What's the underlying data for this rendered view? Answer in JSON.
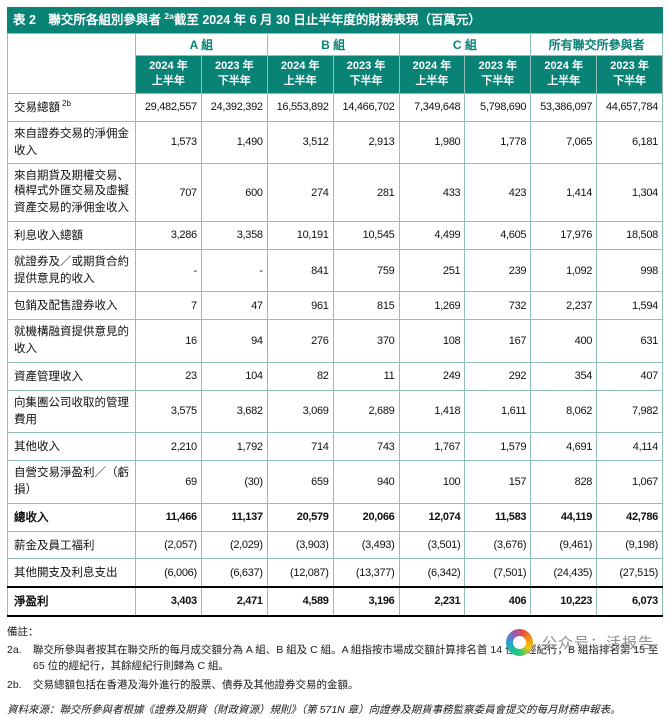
{
  "title": {
    "prefix": "表 2　聯交所各組別參與者 ",
    "sup": "2a",
    "suffix": "截至 2024 年 6 月 30 日止半年度的財務表現（百萬元）"
  },
  "header": {
    "groups": [
      "A 組",
      "B 組",
      "C 組",
      "所有聯交所參與者"
    ],
    "periods": [
      {
        "year": "2024 年",
        "half": "上半年"
      },
      {
        "year": "2023 年",
        "half": "下半年"
      },
      {
        "year": "2024 年",
        "half": "上半年"
      },
      {
        "year": "2023 年",
        "half": "下半年"
      },
      {
        "year": "2024 年",
        "half": "上半年"
      },
      {
        "year": "2023 年",
        "half": "下半年"
      },
      {
        "year": "2024 年",
        "half": "上半年"
      },
      {
        "year": "2023 年",
        "half": "下半年"
      }
    ]
  },
  "table": {
    "rows": [
      {
        "label": "交易總額",
        "sup": "2b",
        "style": "",
        "values": [
          "29,482,557",
          "24,392,392",
          "16,553,892",
          "14,466,702",
          "7,349,648",
          "5,798,690",
          "53,386,097",
          "44,657,784"
        ]
      },
      {
        "label": "來自證券交易的淨佣金收入",
        "style": "",
        "values": [
          "1,573",
          "1,490",
          "3,512",
          "2,913",
          "1,980",
          "1,778",
          "7,065",
          "6,181"
        ]
      },
      {
        "label": "來自期貨及期權交易、槓桿式外匯交易及虛擬資產交易的淨佣金收入",
        "style": "",
        "values": [
          "707",
          "600",
          "274",
          "281",
          "433",
          "423",
          "1,414",
          "1,304"
        ]
      },
      {
        "label": "利息收入總額",
        "style": "",
        "values": [
          "3,286",
          "3,358",
          "10,191",
          "10,545",
          "4,499",
          "4,605",
          "17,976",
          "18,508"
        ]
      },
      {
        "label": "就證券及／或期貨合約提供意見的收入",
        "style": "",
        "values": [
          "-",
          "-",
          "841",
          "759",
          "251",
          "239",
          "1,092",
          "998"
        ]
      },
      {
        "label": "包銷及配售證券收入",
        "style": "",
        "values": [
          "7",
          "47",
          "961",
          "815",
          "1,269",
          "732",
          "2,237",
          "1,594"
        ]
      },
      {
        "label": "就機構融資提供意見的收入",
        "style": "",
        "values": [
          "16",
          "94",
          "276",
          "370",
          "108",
          "167",
          "400",
          "631"
        ]
      },
      {
        "label": "資產管理收入",
        "style": "",
        "values": [
          "23",
          "104",
          "82",
          "11",
          "249",
          "292",
          "354",
          "407"
        ]
      },
      {
        "label": "向集團公司收取的管理費用",
        "style": "",
        "values": [
          "3,575",
          "3,682",
          "3,069",
          "2,689",
          "1,418",
          "1,611",
          "8,062",
          "7,982"
        ]
      },
      {
        "label": "其他收入",
        "style": "",
        "values": [
          "2,210",
          "1,792",
          "714",
          "743",
          "1,767",
          "1,579",
          "4,691",
          "4,114"
        ]
      },
      {
        "label": "自營交易淨盈利／（虧損）",
        "style": "",
        "values": [
          "69",
          "(30)",
          "659",
          "940",
          "100",
          "157",
          "828",
          "1,067"
        ]
      },
      {
        "label": "總收入",
        "style": "bold",
        "values": [
          "11,466",
          "11,137",
          "20,579",
          "20,066",
          "12,074",
          "11,583",
          "44,119",
          "42,786"
        ]
      },
      {
        "label": "薪金及員工福利",
        "style": "",
        "values": [
          "(2,057)",
          "(2,029)",
          "(3,903)",
          "(3,493)",
          "(3,501)",
          "(3,676)",
          "(9,461)",
          "(9,198)"
        ]
      },
      {
        "label": "其他開支及利息支出",
        "style": "",
        "values": [
          "(6,006)",
          "(6,637)",
          "(12,087)",
          "(13,377)",
          "(6,342)",
          "(7,501)",
          "(24,435)",
          "(27,515)"
        ]
      },
      {
        "label": "淨盈利",
        "style": "total",
        "values": [
          "3,403",
          "2,471",
          "4,589",
          "3,196",
          "2,231",
          "406",
          "10,223",
          "6,073"
        ]
      }
    ]
  },
  "notes": {
    "heading": "備註：",
    "items": [
      {
        "marker": "2a.",
        "text": "聯交所參與者按其在聯交所的每月成交額分為 A 組、B 組及 C 組。A 組指按市場成交額計算排名首 14 位的經紀行，B 組指排名第 15 至 65 位的經紀行，其餘經紀行則歸為 C 組。"
      },
      {
        "marker": "2b.",
        "text": "交易總額包括在香港及海外進行的股票、債券及其他證券交易的金額。"
      }
    ],
    "source": "資料來源：聯交所參與者根據《證券及期貨（財政資源）規則》（第 571N 章）向證券及期貨事務監察委員會提交的每月財務申報表。"
  },
  "watermark": {
    "text": "公众号：活报告"
  },
  "colors": {
    "brand_teal": "#0A8377",
    "grid_border": "#93BFB9",
    "total_rule": "#000000",
    "note_text": "#1A1A1A",
    "watermark_gray": "#8E8E8E"
  }
}
